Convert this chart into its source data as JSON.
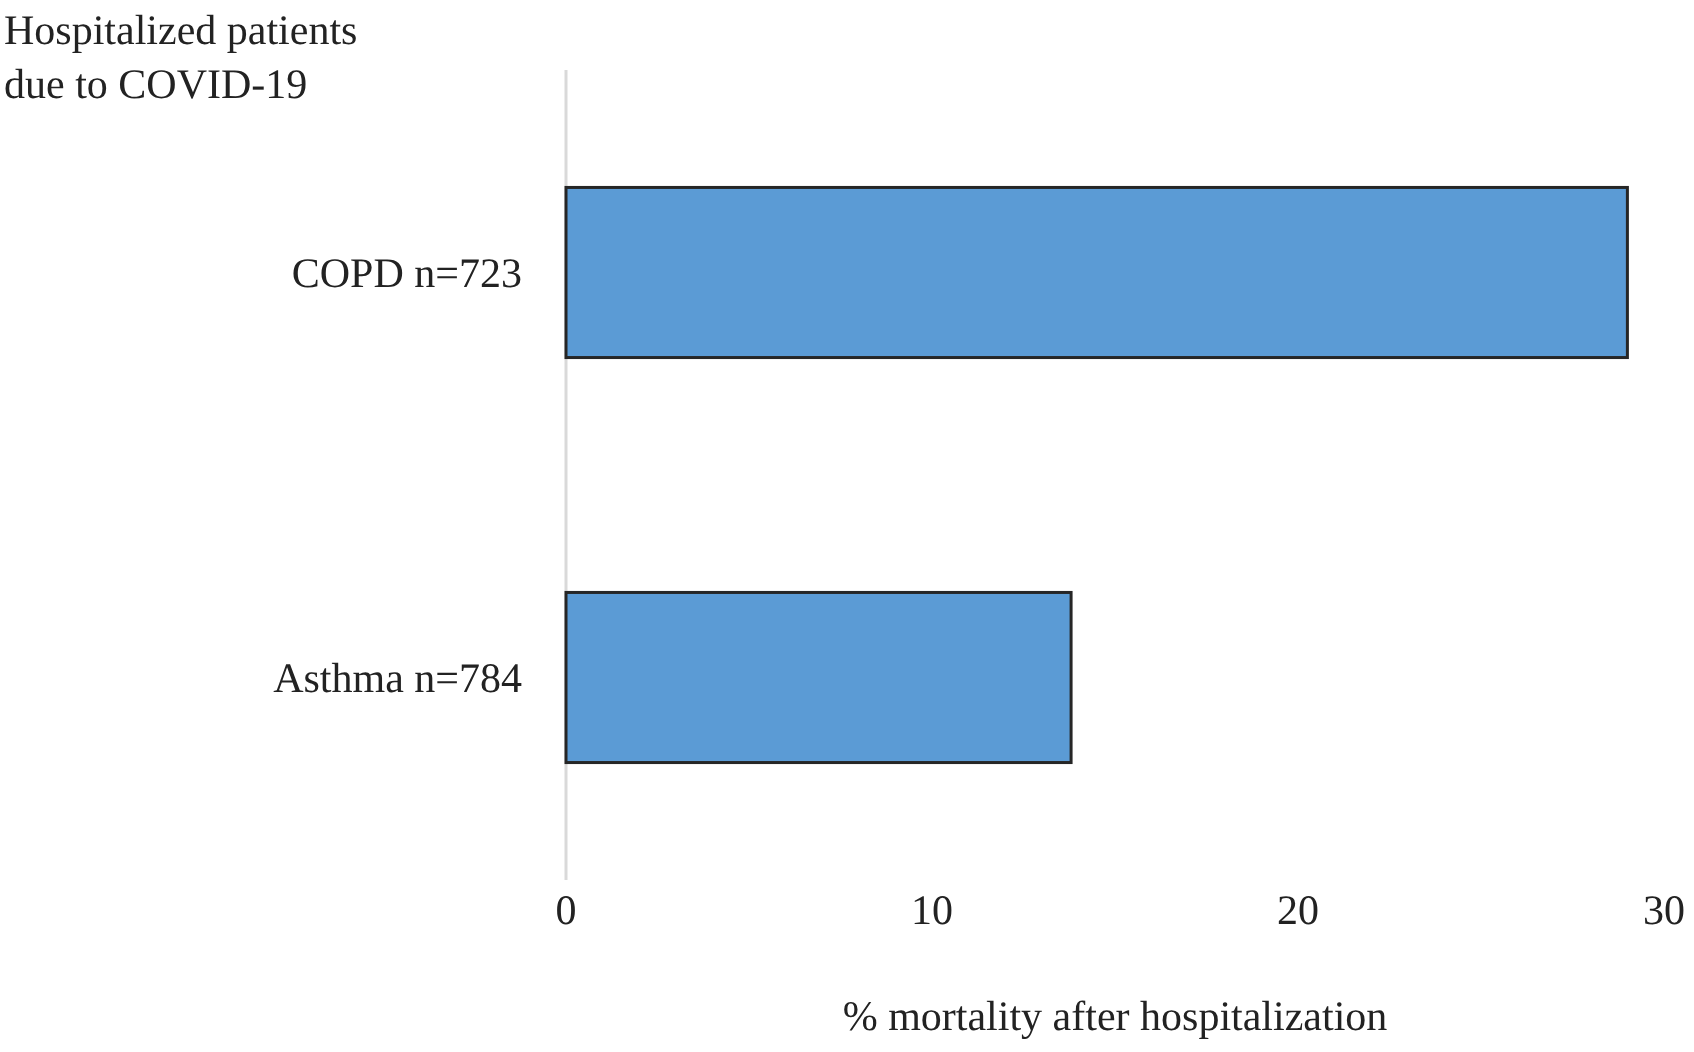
{
  "chart_data": {
    "type": "bar",
    "orientation": "horizontal",
    "ylabel": "Hospitalized patients\ndue to COVID-19",
    "xlabel": "% mortality after hospitalization",
    "categories": [
      "COPD n=723",
      "Asthma n=784"
    ],
    "values": [
      29.0,
      13.8
    ],
    "color": "#5b9bd5",
    "xlim": [
      0,
      30
    ],
    "xticks": [
      0,
      10,
      20,
      30
    ],
    "grid": false
  }
}
